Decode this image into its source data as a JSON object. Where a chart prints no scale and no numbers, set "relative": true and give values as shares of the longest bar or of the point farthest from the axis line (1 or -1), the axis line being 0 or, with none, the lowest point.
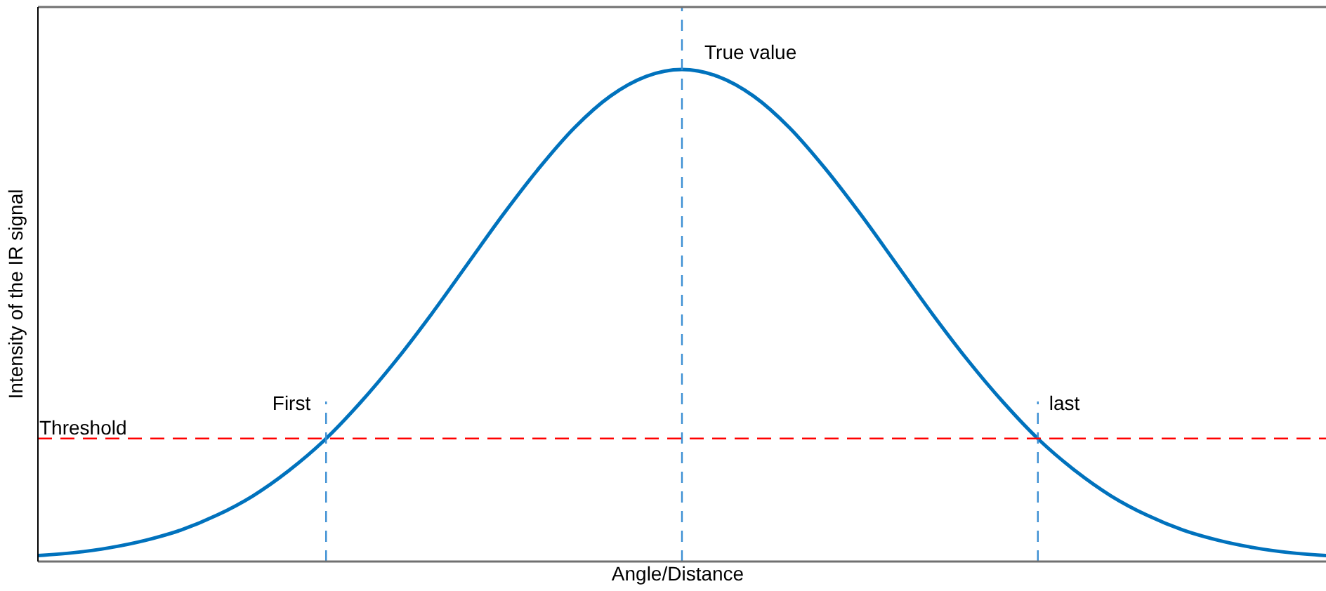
{
  "chart_data": {
    "type": "line",
    "xlabel": "Angle/Distance",
    "ylabel": "Intensity of the IR signal",
    "relative": true,
    "marker": "none",
    "categories": [
      null,
      null,
      null,
      null,
      null,
      null,
      null,
      null,
      null,
      null,
      null,
      null,
      null,
      null,
      null,
      null,
      null,
      null,
      null,
      null,
      null,
      null,
      null,
      null,
      null,
      null,
      null,
      null,
      null,
      null,
      null,
      null,
      null,
      null,
      null,
      null,
      null
    ],
    "series": [
      {
        "color": "#0072bd",
        "values": [
          0.012,
          0.018,
          0.028,
          0.043,
          0.064,
          0.094,
          0.133,
          0.184,
          0.246,
          0.322,
          0.408,
          0.503,
          0.604,
          0.705,
          0.799,
          0.882,
          0.946,
          0.986,
          1,
          0.986,
          0.946,
          0.882,
          0.799,
          0.705,
          0.604,
          0.503,
          0.408,
          0.322,
          0.246,
          0.184,
          0.133,
          0.094,
          0.064,
          0.043,
          0.028,
          0.018,
          0.012
        ]
      }
    ],
    "ref_lines": [
      {
        "axis": "y",
        "value": 0.25,
        "label": "Threshold",
        "color": "#ff0000",
        "line_style": "dashed"
      }
    ],
    "annotations": [
      "First",
      "True value",
      "last"
    ]
  }
}
